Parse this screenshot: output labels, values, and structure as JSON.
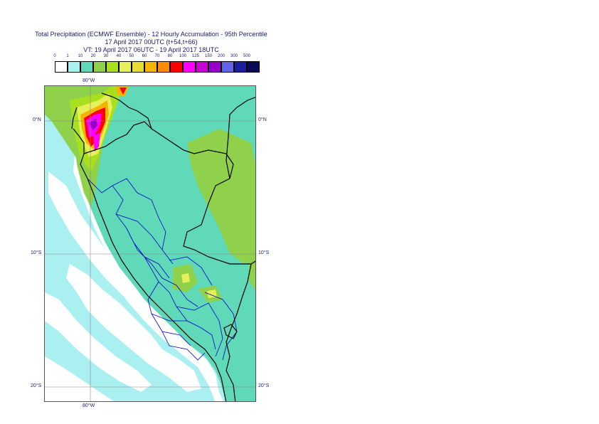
{
  "title": {
    "line1": "Total Precipitation (ECMWF Ensemble) - 12 Hourly Accumulation - 95th Percentile",
    "line2": "17 April 2017 00UTC (t+54,t+66)",
    "line3": "VT: 19 April 2017 06UTC - 19 April 2017 18UTC"
  },
  "legend": {
    "ticks": [
      "0",
      "1",
      "10",
      "20",
      "30",
      "40",
      "50",
      "60",
      "70",
      "80",
      "100",
      "125",
      "150",
      "200",
      "300",
      "500"
    ],
    "colors": [
      "#ffffff",
      "#aaf0f0",
      "#5fd9b8",
      "#8fd14a",
      "#a9e01e",
      "#e6f05a",
      "#e6dc32",
      "#f5b400",
      "#ff8c00",
      "#ff0000",
      "#ff00ff",
      "#c800d2",
      "#9600c8",
      "#6464e6",
      "#1e1ea0",
      "#0a0a50"
    ]
  },
  "map": {
    "lon_top": "80°W",
    "lon_bottom": "80°W",
    "lat_left": [
      "0°N",
      "10°S",
      "20°S"
    ],
    "lat_right": [
      "0°N",
      "10°S",
      "20°S"
    ],
    "colors": {
      "light_cyan": "#aaf0f0",
      "teal": "#5fd9b8",
      "green": "#8fd14a",
      "yellowgreen": "#a9e01e",
      "yellow": "#e6f05a",
      "orange": "#f5b400",
      "red": "#ff0000",
      "magenta": "#ff00ff",
      "purple": "#9600c8",
      "coast": "#000000",
      "regions": "#0000cc",
      "grid": "#888888"
    }
  }
}
